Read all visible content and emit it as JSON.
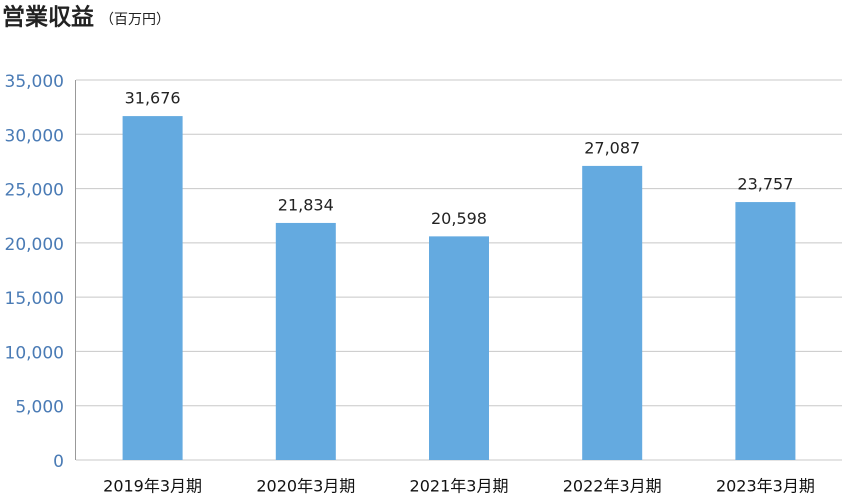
{
  "chart_data": {
    "type": "bar",
    "title": "営業収益",
    "subtitle": "（百万円）",
    "categories": [
      "2019年3月期",
      "2020年3月期",
      "2021年3月期",
      "2022年3月期",
      "2023年3月期"
    ],
    "values": [
      31676,
      21834,
      20598,
      27087,
      23757
    ],
    "value_labels": [
      "31,676",
      "21,834",
      "20,598",
      "27,087",
      "23,757"
    ],
    "color": "#64aae0",
    "ylim": [
      0,
      35000
    ],
    "yticks": [
      0,
      {
        "value": 5000,
        "label": "5,000"
      },
      {
        "value": 10000,
        "label": "10,000"
      },
      {
        "value": 15000,
        "label": "15,000"
      },
      {
        "value": 20000,
        "label": "20,000"
      },
      {
        "value": 25000,
        "label": "25,000"
      },
      {
        "value": 30000,
        "label": "30,000"
      },
      {
        "value": 35000,
        "label": "35,000"
      }
    ],
    "grid": true
  }
}
